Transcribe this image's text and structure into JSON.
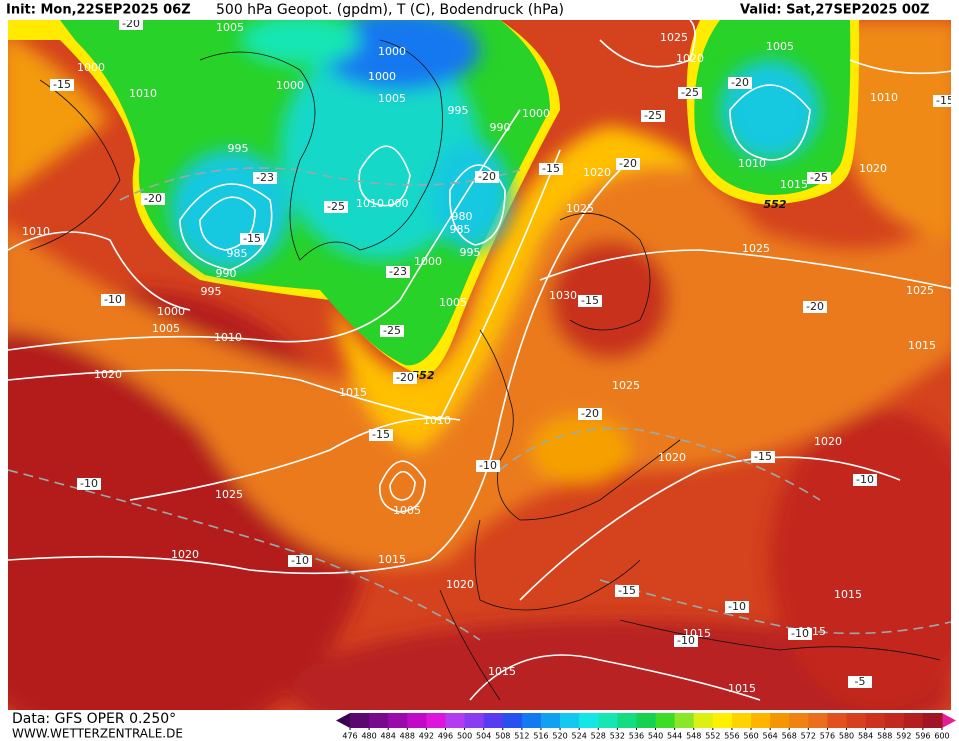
{
  "header": {
    "init": "Init: Mon,22SEP2025 06Z",
    "title": "500 hPa Geopot. (gpdm), T (C), Bodendruck (hPa)",
    "valid": "Valid: Sat,27SEP2025 00Z"
  },
  "footer": {
    "data_source": "Data: GFS OPER 0.250°",
    "website": "WWW.WETTERZENTRALE.DE"
  },
  "pressure_labels": [
    "1005",
    "1000",
    "1010",
    "1000",
    "1000",
    "1000",
    "1005",
    "995",
    "990",
    "1000",
    "995",
    "1010",
    "000",
    "980",
    "985",
    "995",
    "1000",
    "985",
    "990",
    "995",
    "1000",
    "1005",
    "1010",
    "1010",
    "1005",
    "1020",
    "1015",
    "1010",
    "1005",
    "1025",
    "1020",
    "1015",
    "1020",
    "1030",
    "1025",
    "1020",
    "1020",
    "1025",
    "1025",
    "1020",
    "1025",
    "1020",
    "1005",
    "1010",
    "1015",
    "1010",
    "1020",
    "1025",
    "1015",
    "1015",
    "1015",
    "1015",
    "1015",
    "1015"
  ],
  "geopotential_labels": [
    "552",
    "552"
  ],
  "temperature_labels": [
    "-20",
    "-15",
    "-20",
    "-23",
    "-15",
    "-25",
    "-20",
    "-15",
    "-20",
    "-25",
    "-25",
    "-20",
    "-25",
    "-15",
    "-20",
    "-15",
    "-25",
    "-23",
    "-20",
    "-15",
    "-10",
    "-20",
    "-15",
    "-10",
    "-10",
    "-10",
    "-15",
    "-10",
    "-10",
    "-10",
    "-5",
    "-10"
  ],
  "colorbar": {
    "labels": [
      476,
      480,
      484,
      488,
      492,
      496,
      500,
      504,
      508,
      512,
      516,
      520,
      524,
      528,
      532,
      536,
      540,
      544,
      548,
      552,
      556,
      560,
      564,
      568,
      572,
      576,
      580,
      584,
      588,
      592,
      596,
      600
    ],
    "colors": [
      "#5a0a6e",
      "#780a8c",
      "#9a0aaa",
      "#c00ac8",
      "#dc14dc",
      "#b43cf0",
      "#8a3cf0",
      "#5a3cf0",
      "#2850f0",
      "#1478f0",
      "#14a0f0",
      "#14c8f0",
      "#14e6e6",
      "#14e6b4",
      "#14dc82",
      "#14d250",
      "#3cdc28",
      "#8ce628",
      "#dcf014",
      "#fff000",
      "#ffd200",
      "#ffb400",
      "#f59600",
      "#f08214",
      "#eb6e1e",
      "#e1501e",
      "#d7401e",
      "#cd321e",
      "#c3281e",
      "#b41e1e",
      "#a01423"
    ],
    "low_color": "#3c0050",
    "high_color": "#e61e96"
  }
}
